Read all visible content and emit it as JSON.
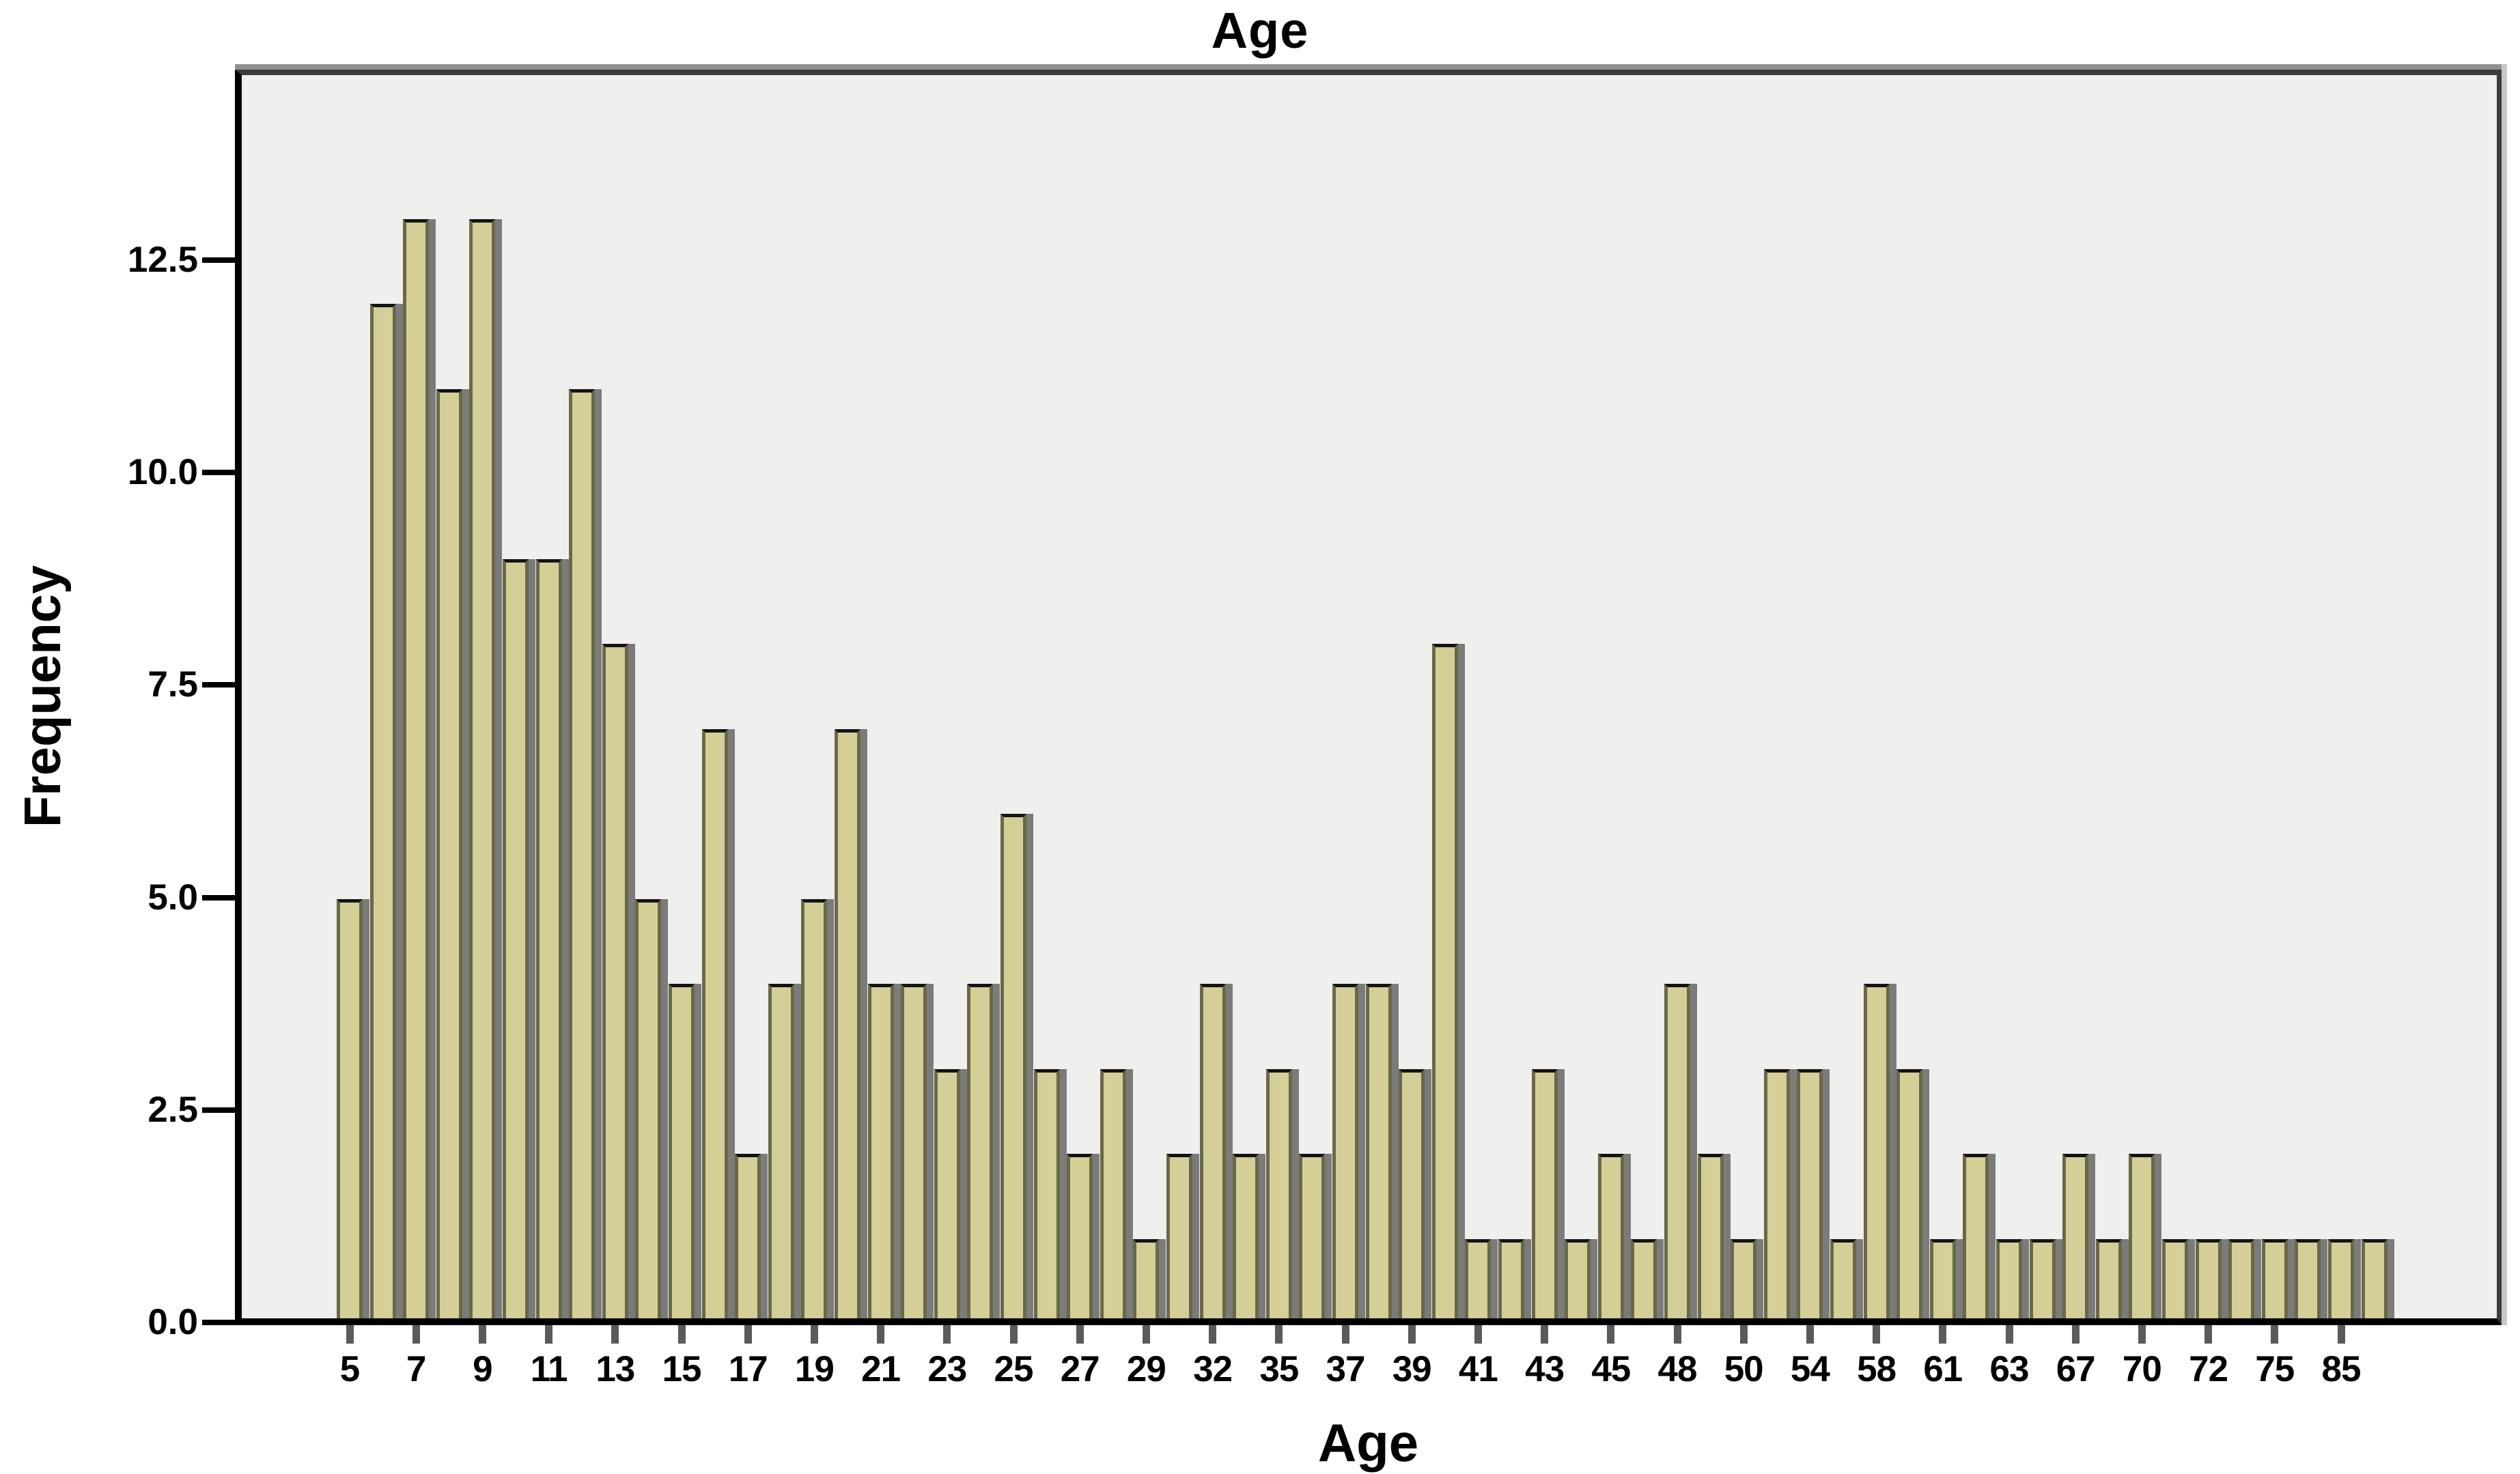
{
  "title": "Age",
  "x_axis": {
    "label": "Age",
    "tick_labels": [
      "5",
      "7",
      "9",
      "11",
      "13",
      "15",
      "17",
      "19",
      "21",
      "23",
      "25",
      "27",
      "29",
      "32",
      "35",
      "37",
      "39",
      "41",
      "43",
      "45",
      "48",
      "50",
      "54",
      "58",
      "61",
      "63",
      "67",
      "70",
      "72",
      "75",
      "85"
    ]
  },
  "y_axis": {
    "label": "Frequency",
    "tick_labels": [
      "0.0",
      "2.5",
      "5.0",
      "7.5",
      "10.0",
      "12.5"
    ],
    "tick_values": [
      0,
      2.5,
      5,
      7.5,
      10,
      12.5
    ]
  },
  "chart_data": {
    "type": "bar",
    "subtype": "histogram-like frequency bar chart (SPSS style)",
    "title": "Age",
    "xlabel": "Age",
    "ylabel": "Frequency",
    "ylim": [
      0,
      14.6
    ],
    "grid": false,
    "legend": "none",
    "bar_count": 62,
    "values": [
      5,
      12,
      13,
      11,
      13,
      9,
      9,
      11,
      8,
      5,
      4,
      7,
      2,
      4,
      5,
      7,
      4,
      4,
      3,
      4,
      6,
      3,
      2,
      3,
      1,
      2,
      4,
      2,
      3,
      2,
      4,
      4,
      3,
      8,
      1,
      1,
      3,
      1,
      2,
      1,
      4,
      2,
      1,
      3,
      3,
      1,
      4,
      3,
      1,
      2,
      1,
      1,
      2,
      1,
      2,
      1,
      1,
      1,
      1,
      1,
      1,
      1
    ],
    "x_tick_labels": [
      "5",
      "7",
      "9",
      "11",
      "13",
      "15",
      "17",
      "19",
      "21",
      "23",
      "25",
      "27",
      "29",
      "32",
      "35",
      "37",
      "39",
      "41",
      "43",
      "45",
      "48",
      "50",
      "54",
      "58",
      "61",
      "63",
      "67",
      "70",
      "72",
      "75",
      "85"
    ],
    "tick_placement": "one tick under every second bar, starting at the first bar",
    "y_ticks": [
      0.0,
      2.5,
      5.0,
      7.5,
      10.0,
      12.5
    ]
  },
  "colors": {
    "bar_fill": "#d3cf96",
    "bar_edge": "#6a6848",
    "bar_top_edge": "#141414",
    "bar_gap_shadow": "#7b7b7b",
    "plot_background": "#f0efee",
    "frame_dark": "#3c3c3c",
    "frame_top_accent": "#919191",
    "frame_right_accent": "#c7c7c7",
    "axis_line": "#000000",
    "page_background": "#ffffff",
    "text": "#000000"
  }
}
